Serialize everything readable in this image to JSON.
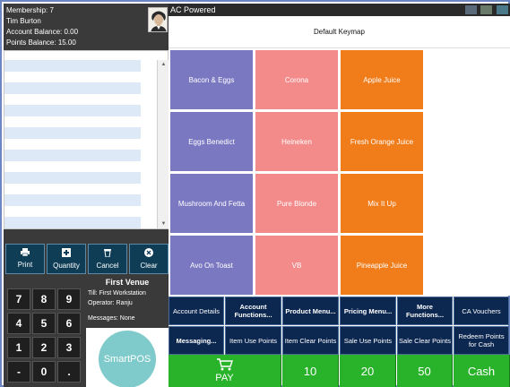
{
  "member": {
    "membership": "Membership: 7",
    "name": "Tim Burton",
    "account_balance": "Account Balance: 0.00",
    "points_balance": "Points Balance: 15.00"
  },
  "topbar": {
    "title": "AC Powered"
  },
  "keymap": {
    "title": "Default Keymap"
  },
  "product_keys": [
    {
      "label": "Bacon & Eggs",
      "color": "#7b78c2"
    },
    {
      "label": "Corona",
      "color": "#f38b8b"
    },
    {
      "label": "Apple Juice",
      "color": "#f07c1a"
    },
    {
      "label": "Eggs Benedict",
      "color": "#7b78c2"
    },
    {
      "label": "Heineken",
      "color": "#f38b8b"
    },
    {
      "label": "Fresh Orange Juice",
      "color": "#f07c1a"
    },
    {
      "label": "Mushroom And Fetta",
      "color": "#7b78c2"
    },
    {
      "label": "Pure Blonde",
      "color": "#f38b8b"
    },
    {
      "label": "Mix It Up",
      "color": "#f07c1a"
    },
    {
      "label": "Avo On Toast",
      "color": "#7b78c2"
    },
    {
      "label": "VB",
      "color": "#f38b8b"
    },
    {
      "label": "Pineapple Juice",
      "color": "#f07c1a"
    }
  ],
  "function_buttons": [
    {
      "label": "Print",
      "icon": "printer-icon"
    },
    {
      "label": "Quantity",
      "icon": "plus-icon"
    },
    {
      "label": "Cancel",
      "icon": "trash-icon"
    },
    {
      "label": "Clear",
      "icon": "close-circle-icon"
    }
  ],
  "keypad": [
    "7",
    "8",
    "9",
    "4",
    "5",
    "6",
    "1",
    "2",
    "3",
    "-",
    "0",
    "."
  ],
  "venue": {
    "title": "First Venue",
    "till": "Till: First Workstation",
    "operator": "Operator: Ranju",
    "messages": "Messages: None"
  },
  "logo": {
    "text": "SmartPOS"
  },
  "nav_row1": [
    {
      "label": "Account Details",
      "bold": false
    },
    {
      "label": "Account Functions...",
      "bold": true
    },
    {
      "label": "Product Menu...",
      "bold": true
    },
    {
      "label": "Pricing Menu...",
      "bold": true
    },
    {
      "label": "More Functions...",
      "bold": true
    },
    {
      "label": "CA Vouchers",
      "bold": false
    }
  ],
  "nav_row2": [
    {
      "label": "Messaging...",
      "bold": true
    },
    {
      "label": "Item Use Points",
      "bold": false
    },
    {
      "label": "Item Clear Points",
      "bold": false
    },
    {
      "label": "Sale Use Points",
      "bold": false
    },
    {
      "label": "Sale Clear Points",
      "bold": false
    },
    {
      "label": "Redeem Points for Cash",
      "bold": false
    }
  ],
  "bottom_buttons": {
    "pay": "PAY",
    "cash10": "10",
    "cash20": "20",
    "cash50": "50",
    "cash": "Cash"
  },
  "colors": {
    "dark_panel": "#3a3a3a",
    "function_button": "#0e3d55",
    "nav_button": "#0c2750",
    "pay_green": "#29b32a",
    "list_stripe": "#dde9f7",
    "logo_teal": "#7fcaca"
  }
}
